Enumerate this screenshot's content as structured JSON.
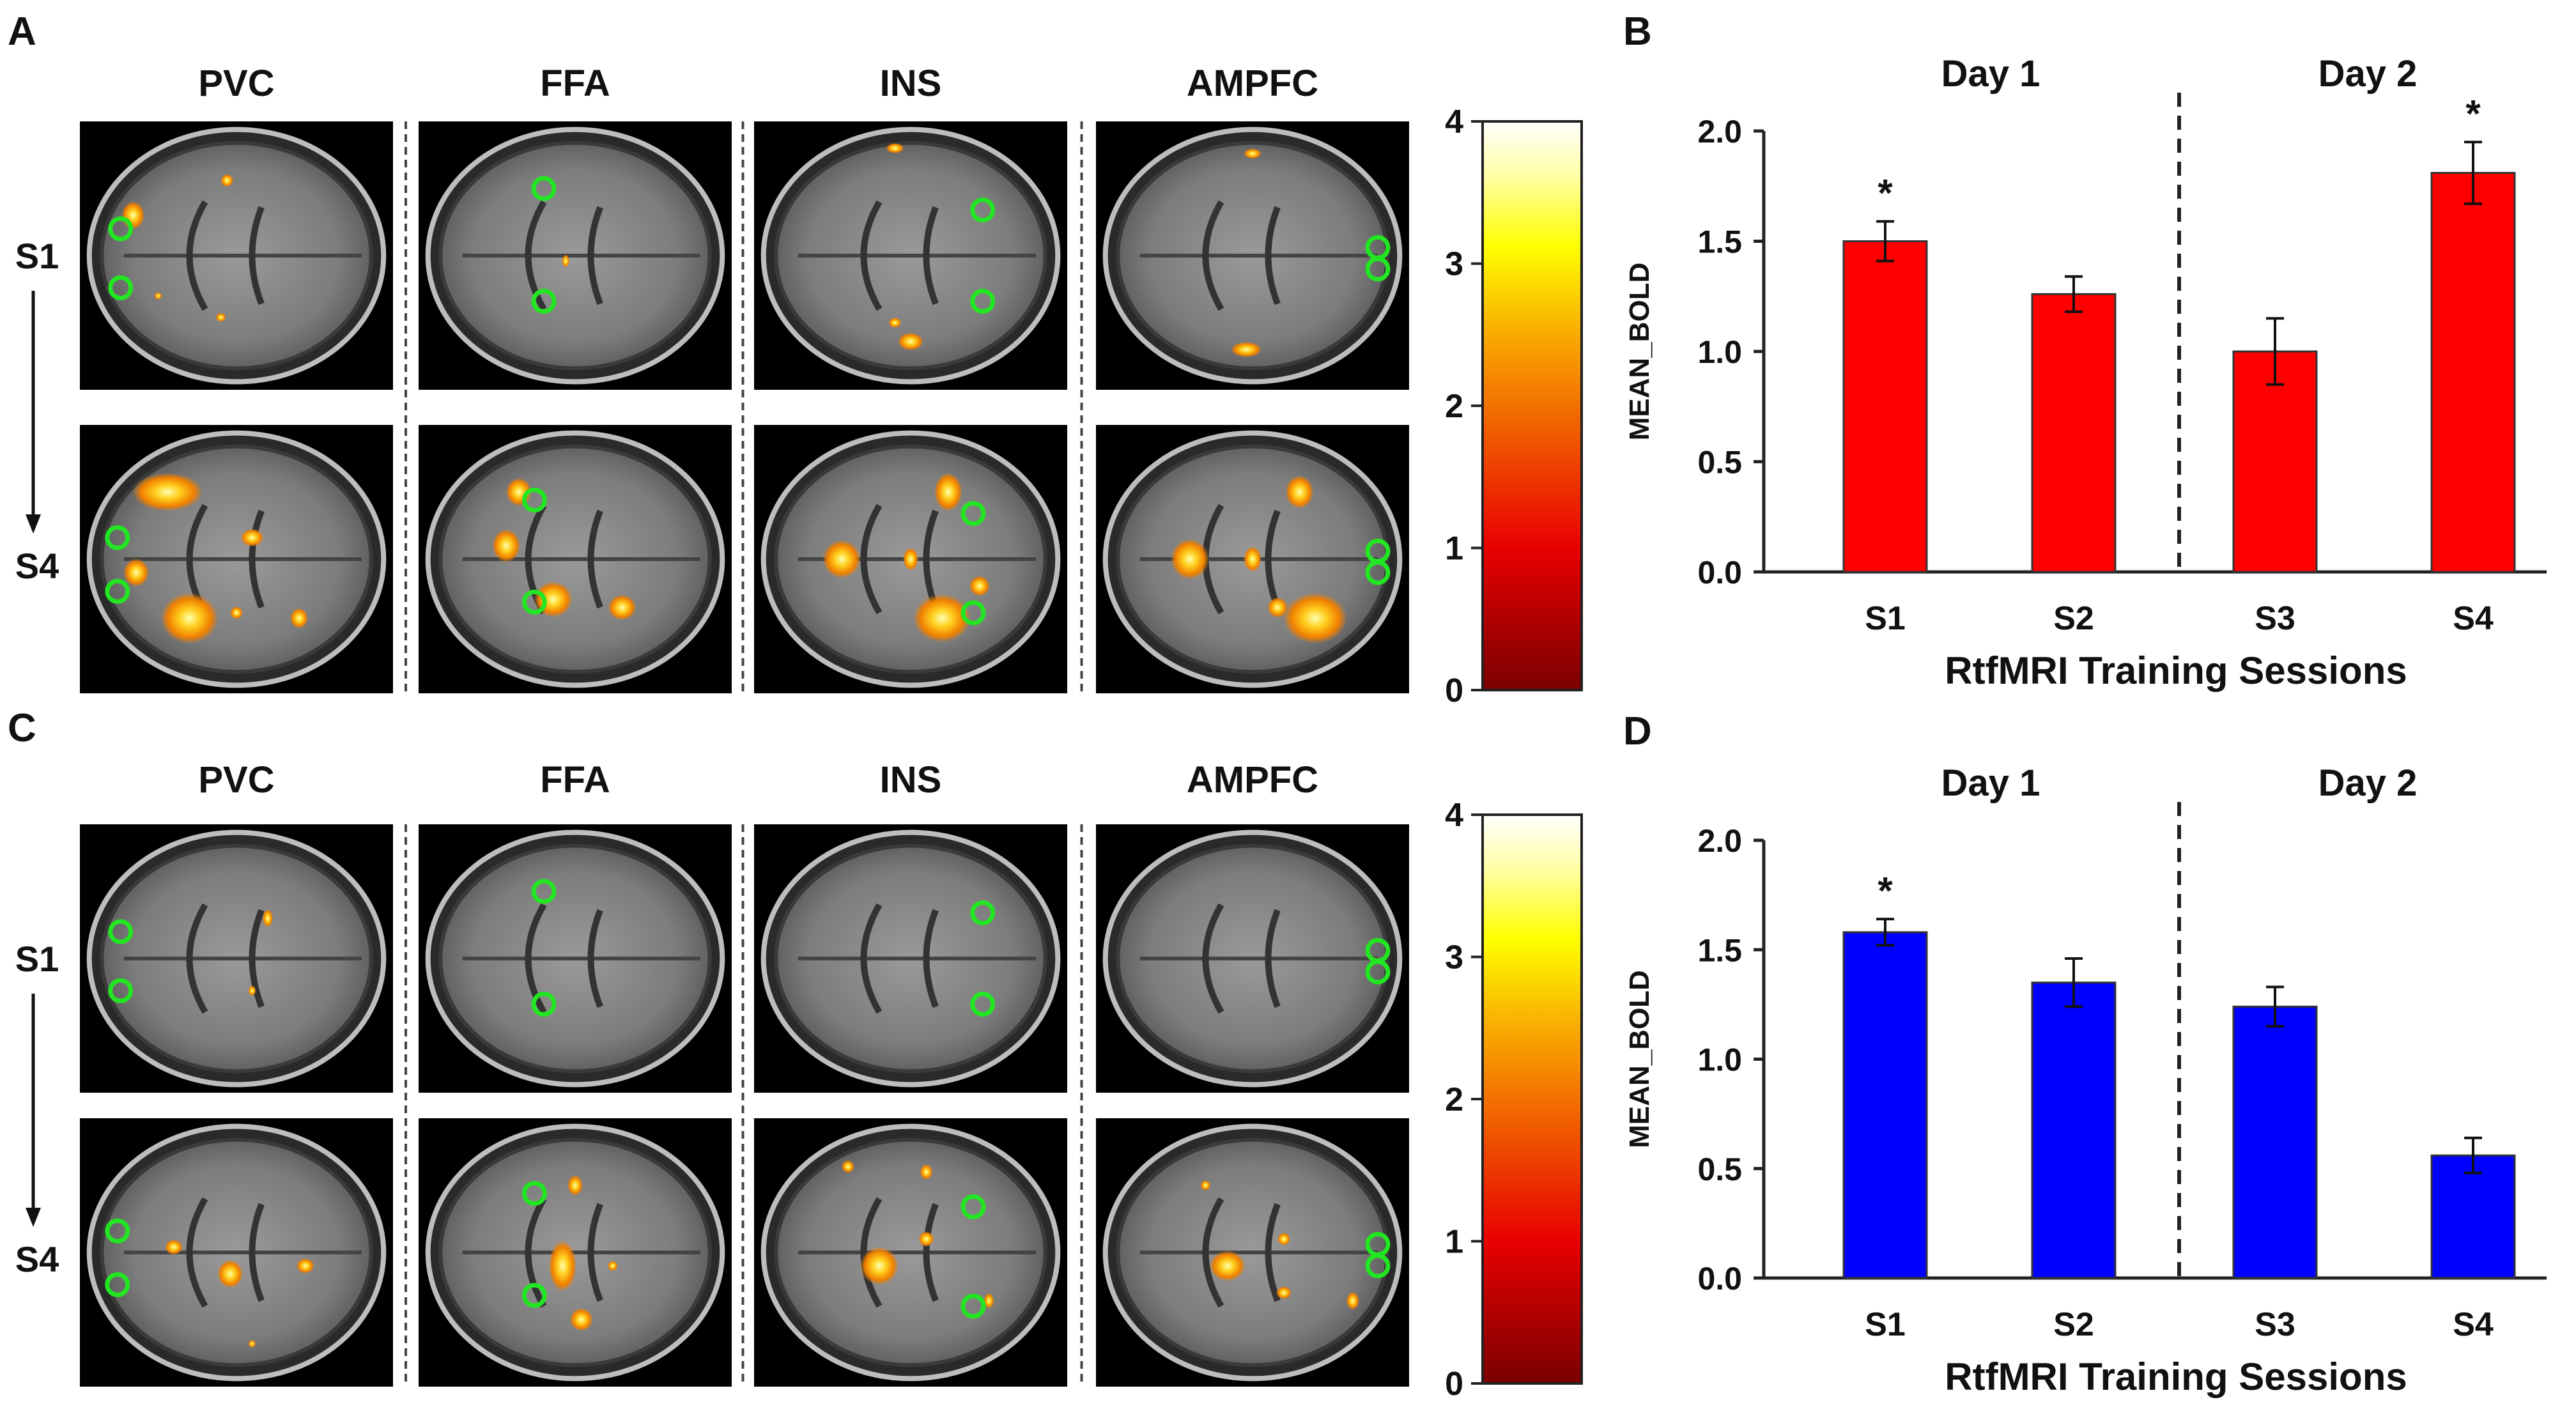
{
  "panels": {
    "A": {
      "letter": "A",
      "columns": [
        "PVC",
        "FFA",
        "INS",
        "AMPFC"
      ],
      "rows": [
        "S1",
        "S4"
      ],
      "colorbar": {
        "ticks": [
          "0",
          "1",
          "2",
          "3",
          "4"
        ],
        "min": 0,
        "max": 4
      }
    },
    "C": {
      "letter": "C",
      "columns": [
        "PVC",
        "FFA",
        "INS",
        "AMPFC"
      ],
      "rows": [
        "S1",
        "S4"
      ],
      "colorbar": {
        "ticks": [
          "0",
          "1",
          "2",
          "3",
          "4"
        ],
        "min": 0,
        "max": 4
      }
    },
    "B": {
      "letter": "B",
      "day1": "Day 1",
      "day2": "Day 2",
      "significance": "*"
    },
    "D": {
      "letter": "D",
      "day1": "Day 1",
      "day2": "Day 2",
      "significance": "*"
    }
  },
  "chart_data": [
    {
      "panel": "B",
      "type": "bar",
      "categories": [
        "S1",
        "S2",
        "S3",
        "S4"
      ],
      "values": [
        1.5,
        1.26,
        1.0,
        1.81
      ],
      "errors": [
        0.09,
        0.08,
        0.15,
        0.14
      ],
      "significant": [
        true,
        false,
        false,
        true
      ],
      "color": "#ff0000",
      "ylabel": "MEAN_BOLD",
      "xlabel": "RtfMRI  Training  Sessions",
      "ylim": [
        0,
        2.0
      ],
      "yticks": [
        "0.0",
        "0.5",
        "1.0",
        "1.5",
        "2.0"
      ]
    },
    {
      "panel": "D",
      "type": "bar",
      "categories": [
        "S1",
        "S2",
        "S3",
        "S4"
      ],
      "values": [
        1.58,
        1.35,
        1.24,
        0.56
      ],
      "errors": [
        0.06,
        0.11,
        0.09,
        0.08
      ],
      "significant": [
        true,
        false,
        false,
        false
      ],
      "color": "#0000ff",
      "ylabel": "MEAN_BOLD",
      "xlabel": "RtfMRI  Training  Sessions",
      "ylim": [
        0,
        2.0
      ],
      "yticks": [
        "0.0",
        "0.5",
        "1.0",
        "1.5",
        "2.0"
      ]
    }
  ]
}
